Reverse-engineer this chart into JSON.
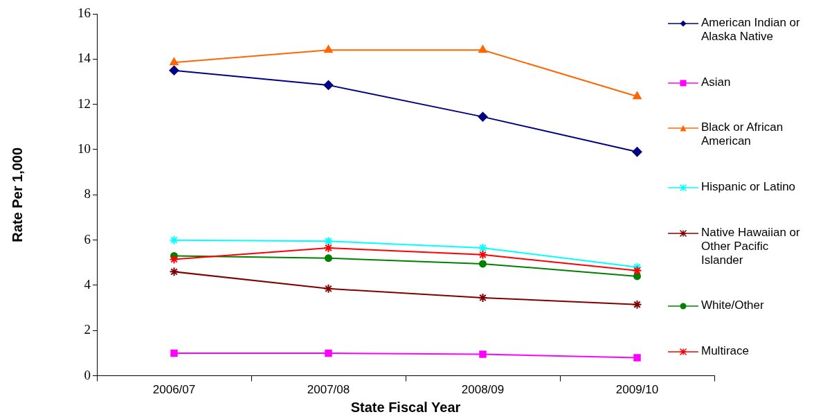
{
  "chart_data": {
    "type": "line",
    "xlabel": "State Fiscal Year",
    "ylabel": "Rate Per 1,000",
    "categories": [
      "2006/07",
      "2007/08",
      "2008/09",
      "2009/10"
    ],
    "ylim": [
      0,
      16
    ],
    "yticks": [
      0,
      2,
      4,
      6,
      8,
      10,
      12,
      14,
      16
    ],
    "grid": false,
    "legend": "right",
    "series": [
      {
        "name": "American Indian or Alaska Native",
        "color": "#000080",
        "marker": "diamond",
        "values": [
          13.5,
          12.85,
          11.45,
          9.9
        ]
      },
      {
        "name": "Asian",
        "color": "#ff00ff",
        "marker": "square",
        "values": [
          1.0,
          1.0,
          0.95,
          0.8
        ]
      },
      {
        "name": "Black or African American",
        "color": "#ff6600",
        "marker": "triangle",
        "values": [
          13.85,
          14.4,
          14.4,
          12.35
        ]
      },
      {
        "name": "Hispanic or Latino",
        "color": "#00ffff",
        "marker": "cross",
        "values": [
          6.0,
          5.95,
          5.65,
          4.8
        ]
      },
      {
        "name": "Native Hawaiian or Other Pacific Islander",
        "color": "#800000",
        "marker": "cross",
        "values": [
          4.6,
          3.85,
          3.45,
          3.15
        ]
      },
      {
        "name": "White/Other",
        "color": "#008000",
        "marker": "circle",
        "values": [
          5.3,
          5.2,
          4.95,
          4.4
        ]
      },
      {
        "name": "Multirace",
        "color": "#ff0000",
        "marker": "cross",
        "values": [
          5.15,
          5.65,
          5.35,
          4.65
        ]
      }
    ]
  }
}
